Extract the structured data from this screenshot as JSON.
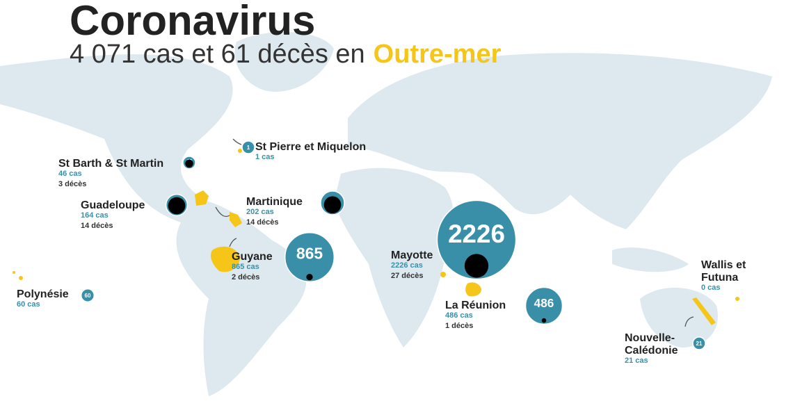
{
  "header": {
    "title": "Coronavirus",
    "subtitle": "4 071 cas et 61 décès en",
    "subtitle_highlight": "Outre-mer"
  },
  "territories": [
    {
      "name_lines": [
        "St Pierre et Miquelon"
      ],
      "cases": 1,
      "cases_label": "1 cas"
    },
    {
      "name_lines": [
        "St Barth & St Martin"
      ],
      "cases": 46,
      "cases_label": "46 cas",
      "deaths": 3,
      "deaths_label": "3 décès"
    },
    {
      "name_lines": [
        "Guadeloupe"
      ],
      "cases": 164,
      "cases_label": "164 cas",
      "deaths": 14,
      "deaths_label": "14 décès"
    },
    {
      "name_lines": [
        "Martinique"
      ],
      "cases": 202,
      "cases_label": "202 cas",
      "deaths": 14,
      "deaths_label": "14 décès"
    },
    {
      "name_lines": [
        "Guyane"
      ],
      "cases": 865,
      "cases_label": "865 cas",
      "deaths": 2,
      "deaths_label": "2 décès"
    },
    {
      "name_lines": [
        "Mayotte"
      ],
      "cases": 2226,
      "cases_label": "2226 cas",
      "deaths": 27,
      "deaths_label": "27 décès"
    },
    {
      "name_lines": [
        "La Réunion"
      ],
      "cases": 486,
      "cases_label": "486 cas",
      "deaths": 1,
      "deaths_label": "1 décès"
    },
    {
      "name_lines": [
        "Polynésie"
      ],
      "cases": 60,
      "cases_label": "60 cas"
    },
    {
      "name_lines": [
        "Wallis et",
        "Futuna"
      ],
      "cases_label": "0 cas"
    },
    {
      "name_lines": [
        "Nouvelle-",
        "Calédonie"
      ],
      "cases": 21,
      "cases_label": "21 cas"
    }
  ]
}
